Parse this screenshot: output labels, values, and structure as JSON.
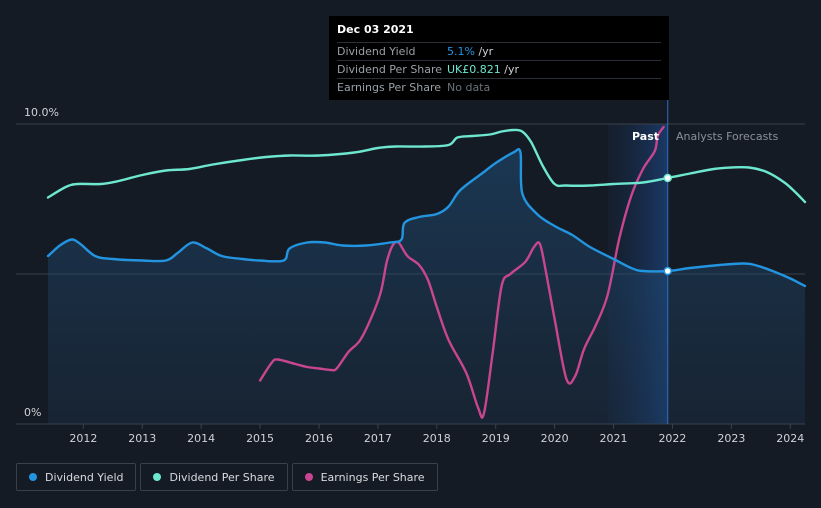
{
  "colors": {
    "background": "#151b24",
    "dividend_yield": "#2394df",
    "dividend_per_share": "#6ee7d0",
    "earnings_per_share": "#c8468f",
    "forecast_band": "#1b3a66"
  },
  "tooltip": {
    "date": "Dec 03 2021",
    "rows": [
      {
        "label": "Dividend Yield",
        "value": "5.1%",
        "unit": " /yr",
        "value_color": "#2394df"
      },
      {
        "label": "Dividend Per Share",
        "value": "UK£0.821",
        "unit": " /yr",
        "value_color": "#6ee7d0"
      },
      {
        "label": "Earnings Per Share",
        "value": "No data",
        "unit": "",
        "value_color": "#6b7178"
      }
    ]
  },
  "past_label": "Past",
  "forecast_label": "Analysts Forecasts",
  "legend": [
    {
      "label": "Dividend Yield",
      "color": "#2394df"
    },
    {
      "label": "Dividend Per Share",
      "color": "#6ee7d0"
    },
    {
      "label": "Earnings Per Share",
      "color": "#c8468f"
    }
  ],
  "chart_data": {
    "type": "line",
    "x_tick_labels": [
      "2012",
      "2013",
      "2014",
      "2015",
      "2016",
      "2017",
      "2018",
      "2019",
      "2020",
      "2021",
      "2022",
      "2023",
      "2024"
    ],
    "x_ticks": [
      2012,
      2013,
      2014,
      2015,
      2016,
      2017,
      2018,
      2019,
      2020,
      2021,
      2022,
      2023,
      2024
    ],
    "xlim": [
      2011.4,
      2024.25
    ],
    "y_tick_labels": [
      "10.0%",
      "0%"
    ],
    "ylim": [
      0,
      10
    ],
    "y_gridlines": [
      0,
      5,
      10
    ],
    "cursor_x": 2021.92,
    "forecast_start": 2020.9,
    "series": [
      {
        "name": "Dividend Yield",
        "points": [
          [
            2011.4,
            5.6
          ],
          [
            2011.6,
            5.95
          ],
          [
            2011.8,
            6.15
          ],
          [
            2011.95,
            6.0
          ],
          [
            2012.2,
            5.6
          ],
          [
            2012.5,
            5.5
          ],
          [
            2013.0,
            5.45
          ],
          [
            2013.4,
            5.45
          ],
          [
            2013.6,
            5.7
          ],
          [
            2013.85,
            6.05
          ],
          [
            2014.1,
            5.85
          ],
          [
            2014.35,
            5.6
          ],
          [
            2014.7,
            5.5
          ],
          [
            2015.0,
            5.45
          ],
          [
            2015.4,
            5.45
          ],
          [
            2015.5,
            5.85
          ],
          [
            2015.8,
            6.05
          ],
          [
            2016.1,
            6.05
          ],
          [
            2016.4,
            5.95
          ],
          [
            2016.8,
            5.95
          ],
          [
            2017.2,
            6.05
          ],
          [
            2017.4,
            6.15
          ],
          [
            2017.45,
            6.7
          ],
          [
            2017.7,
            6.9
          ],
          [
            2018.0,
            7.0
          ],
          [
            2018.2,
            7.25
          ],
          [
            2018.4,
            7.8
          ],
          [
            2018.8,
            8.4
          ],
          [
            2019.0,
            8.7
          ],
          [
            2019.3,
            9.05
          ],
          [
            2019.42,
            9.05
          ],
          [
            2019.45,
            7.7
          ],
          [
            2019.7,
            7.0
          ],
          [
            2020.0,
            6.6
          ],
          [
            2020.3,
            6.3
          ],
          [
            2020.6,
            5.9
          ],
          [
            2021.0,
            5.5
          ],
          [
            2021.3,
            5.2
          ],
          [
            2021.5,
            5.1
          ],
          [
            2021.92,
            5.1
          ],
          [
            2022.3,
            5.2
          ],
          [
            2022.8,
            5.3
          ],
          [
            2023.2,
            5.35
          ],
          [
            2023.4,
            5.3
          ],
          [
            2023.7,
            5.1
          ],
          [
            2024.0,
            4.85
          ],
          [
            2024.25,
            4.6
          ]
        ]
      },
      {
        "name": "Dividend Per Share",
        "points": [
          [
            2011.4,
            7.55
          ],
          [
            2011.7,
            7.9
          ],
          [
            2011.9,
            8.0
          ],
          [
            2012.3,
            8.0
          ],
          [
            2012.6,
            8.1
          ],
          [
            2013.0,
            8.3
          ],
          [
            2013.4,
            8.45
          ],
          [
            2013.8,
            8.5
          ],
          [
            2014.2,
            8.65
          ],
          [
            2014.7,
            8.8
          ],
          [
            2015.1,
            8.9
          ],
          [
            2015.5,
            8.95
          ],
          [
            2016.0,
            8.95
          ],
          [
            2016.6,
            9.05
          ],
          [
            2017.0,
            9.2
          ],
          [
            2017.3,
            9.25
          ],
          [
            2017.8,
            9.25
          ],
          [
            2018.2,
            9.3
          ],
          [
            2018.35,
            9.55
          ],
          [
            2018.6,
            9.6
          ],
          [
            2018.9,
            9.65
          ],
          [
            2019.1,
            9.75
          ],
          [
            2019.3,
            9.8
          ],
          [
            2019.45,
            9.75
          ],
          [
            2019.6,
            9.4
          ],
          [
            2019.8,
            8.6
          ],
          [
            2020.0,
            8.0
          ],
          [
            2020.2,
            7.95
          ],
          [
            2020.6,
            7.95
          ],
          [
            2021.0,
            8.0
          ],
          [
            2021.5,
            8.05
          ],
          [
            2021.92,
            8.2
          ],
          [
            2022.3,
            8.35
          ],
          [
            2022.7,
            8.5
          ],
          [
            2023.0,
            8.55
          ],
          [
            2023.3,
            8.55
          ],
          [
            2023.6,
            8.4
          ],
          [
            2023.9,
            8.05
          ],
          [
            2024.1,
            7.7
          ],
          [
            2024.25,
            7.4
          ]
        ]
      },
      {
        "name": "Earnings Per Share",
        "points": [
          [
            2015.0,
            1.45
          ],
          [
            2015.2,
            2.05
          ],
          [
            2015.3,
            2.15
          ],
          [
            2015.6,
            2.0
          ],
          [
            2015.8,
            1.9
          ],
          [
            2016.0,
            1.85
          ],
          [
            2016.2,
            1.8
          ],
          [
            2016.3,
            1.85
          ],
          [
            2016.5,
            2.4
          ],
          [
            2016.7,
            2.8
          ],
          [
            2016.9,
            3.6
          ],
          [
            2017.05,
            4.4
          ],
          [
            2017.15,
            5.4
          ],
          [
            2017.25,
            5.95
          ],
          [
            2017.35,
            6.05
          ],
          [
            2017.5,
            5.6
          ],
          [
            2017.7,
            5.3
          ],
          [
            2017.85,
            4.8
          ],
          [
            2018.0,
            3.9
          ],
          [
            2018.2,
            2.8
          ],
          [
            2018.5,
            1.7
          ],
          [
            2018.7,
            0.55
          ],
          [
            2018.8,
            0.35
          ],
          [
            2018.95,
            2.4
          ],
          [
            2019.1,
            4.6
          ],
          [
            2019.25,
            5.0
          ],
          [
            2019.5,
            5.4
          ],
          [
            2019.65,
            5.9
          ],
          [
            2019.75,
            6.0
          ],
          [
            2019.85,
            5.1
          ],
          [
            2020.0,
            3.5
          ],
          [
            2020.2,
            1.5
          ],
          [
            2020.35,
            1.6
          ],
          [
            2020.5,
            2.5
          ],
          [
            2020.7,
            3.3
          ],
          [
            2020.9,
            4.3
          ],
          [
            2021.1,
            6.2
          ],
          [
            2021.3,
            7.6
          ],
          [
            2021.5,
            8.5
          ],
          [
            2021.7,
            9.1
          ],
          [
            2021.75,
            9.6
          ],
          [
            2021.85,
            9.9
          ]
        ]
      }
    ]
  }
}
